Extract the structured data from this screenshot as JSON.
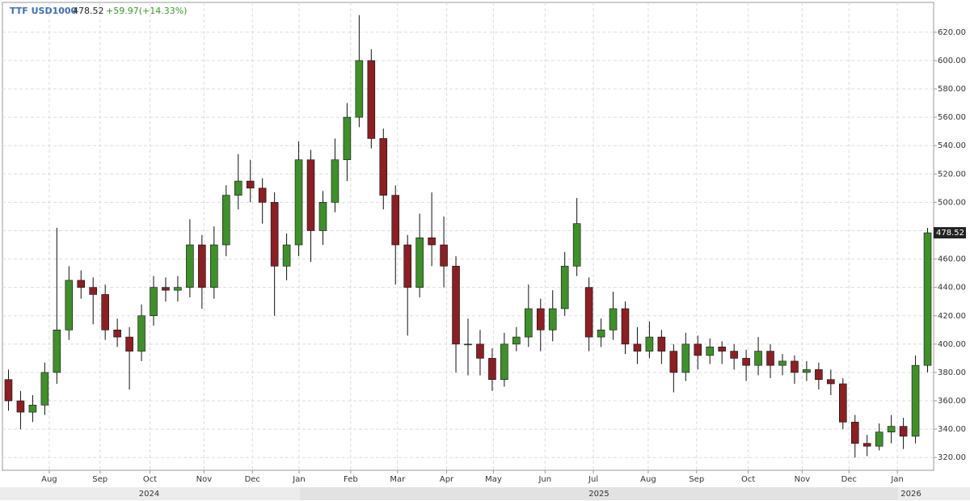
{
  "chart_data": {
    "type": "candlestick",
    "symbol": "TTF USD1000",
    "last": 478.52,
    "change": "+59.97(+14.33%)",
    "up_color": "#3f8f2a",
    "down_color": "#8a1f24",
    "open": [
      375,
      360,
      352,
      357,
      380,
      410,
      445,
      440,
      435,
      410,
      405,
      395,
      420,
      440,
      438,
      440,
      470,
      440,
      470,
      505,
      515,
      510,
      500,
      455,
      470,
      530,
      480,
      500,
      530,
      560,
      600,
      545,
      505,
      470,
      440,
      475,
      470,
      455,
      400,
      400,
      390,
      375,
      400,
      405,
      425,
      410,
      425,
      455,
      440,
      405,
      410,
      425,
      400,
      395,
      405,
      395,
      380,
      400,
      392,
      398,
      395,
      390,
      385,
      395,
      385,
      388,
      380,
      382,
      375,
      372,
      345,
      330,
      328,
      338,
      342,
      335,
      385
    ],
    "high": [
      382,
      367,
      364,
      387,
      482,
      455,
      452,
      447,
      442,
      418,
      412,
      428,
      448,
      447,
      448,
      488,
      477,
      483,
      512,
      534,
      530,
      517,
      507,
      478,
      543,
      537,
      508,
      545,
      570,
      632,
      608,
      552,
      512,
      477,
      492,
      507,
      490,
      462,
      418,
      410,
      397,
      408,
      412,
      442,
      432,
      438,
      465,
      503,
      447,
      418,
      437,
      430,
      412,
      416,
      410,
      400,
      408,
      406,
      404,
      402,
      400,
      396,
      405,
      400,
      393,
      392,
      388,
      387,
      382,
      376,
      350,
      336,
      344,
      350,
      348,
      392,
      482
    ],
    "low": [
      353,
      340,
      345,
      350,
      372,
      403,
      432,
      414,
      403,
      398,
      368,
      388,
      413,
      430,
      430,
      433,
      425,
      432,
      462,
      495,
      500,
      485,
      420,
      445,
      462,
      458,
      470,
      493,
      515,
      553,
      538,
      495,
      442,
      406,
      433,
      455,
      440,
      380,
      378,
      378,
      367,
      370,
      395,
      398,
      395,
      402,
      420,
      448,
      395,
      398,
      403,
      393,
      386,
      390,
      386,
      366,
      374,
      382,
      386,
      386,
      382,
      374,
      378,
      376,
      378,
      372,
      374,
      368,
      364,
      340,
      320,
      321,
      325,
      330,
      326,
      330,
      380
    ],
    "close": [
      360,
      352,
      357,
      380,
      410,
      445,
      440,
      435,
      410,
      405,
      395,
      420,
      440,
      438,
      440,
      470,
      440,
      470,
      505,
      515,
      510,
      500,
      455,
      470,
      530,
      480,
      500,
      530,
      560,
      600,
      545,
      505,
      470,
      440,
      475,
      470,
      455,
      400,
      400,
      390,
      375,
      400,
      405,
      425,
      410,
      425,
      455,
      485,
      405,
      410,
      425,
      400,
      395,
      405,
      395,
      380,
      400,
      392,
      398,
      395,
      390,
      385,
      395,
      385,
      388,
      380,
      382,
      375,
      372,
      345,
      330,
      328,
      338,
      342,
      335,
      385,
      478.52
    ],
    "xlim": [
      -0.5,
      76.5
    ],
    "xticks": [
      {
        "value": 3.37,
        "label": "Aug"
      },
      {
        "value": 7.57,
        "label": "Sep"
      },
      {
        "value": 11.7,
        "label": "Oct"
      },
      {
        "value": 16.17,
        "label": "Nov"
      },
      {
        "value": 20.17,
        "label": "Dec"
      },
      {
        "value": 24.03,
        "label": "Jan"
      },
      {
        "value": 28.3,
        "label": "Feb"
      },
      {
        "value": 32.17,
        "label": "Mar"
      },
      {
        "value": 36.23,
        "label": "Apr"
      },
      {
        "value": 40.1,
        "label": "May"
      },
      {
        "value": 44.37,
        "label": "Jun"
      },
      {
        "value": 48.37,
        "label": "Jul"
      },
      {
        "value": 52.9,
        "label": "Aug"
      },
      {
        "value": 56.9,
        "label": "Sep"
      },
      {
        "value": 61.17,
        "label": "Oct"
      },
      {
        "value": 65.63,
        "label": "Nov"
      },
      {
        "value": 69.5,
        "label": "Dec"
      },
      {
        "value": 73.5,
        "label": "Jan"
      }
    ],
    "years": [
      {
        "value": 11.63,
        "label": "2024"
      },
      {
        "value": 48.83,
        "label": "2025"
      },
      {
        "value": 74.63,
        "label": "2026"
      }
    ],
    "ylim": [
      311,
      641
    ],
    "yticks": [
      {
        "value": 320,
        "label": "320.00"
      },
      {
        "value": 340,
        "label": "340.00"
      },
      {
        "value": 360,
        "label": "360.00"
      },
      {
        "value": 380,
        "label": "380.00"
      },
      {
        "value": 400,
        "label": "400.00"
      },
      {
        "value": 420,
        "label": "420.00"
      },
      {
        "value": 440,
        "label": "440.00"
      },
      {
        "value": 460,
        "label": "460.00"
      },
      {
        "value": 480,
        "label": "480.00"
      },
      {
        "value": 500,
        "label": "500.00"
      },
      {
        "value": 520,
        "label": "520.00"
      },
      {
        "value": 540,
        "label": "540.00"
      },
      {
        "value": 560,
        "label": "560.00"
      },
      {
        "value": 580,
        "label": "580.00"
      },
      {
        "value": 600,
        "label": "600.00"
      },
      {
        "value": 620,
        "label": "620.00"
      }
    ],
    "grid": true
  }
}
